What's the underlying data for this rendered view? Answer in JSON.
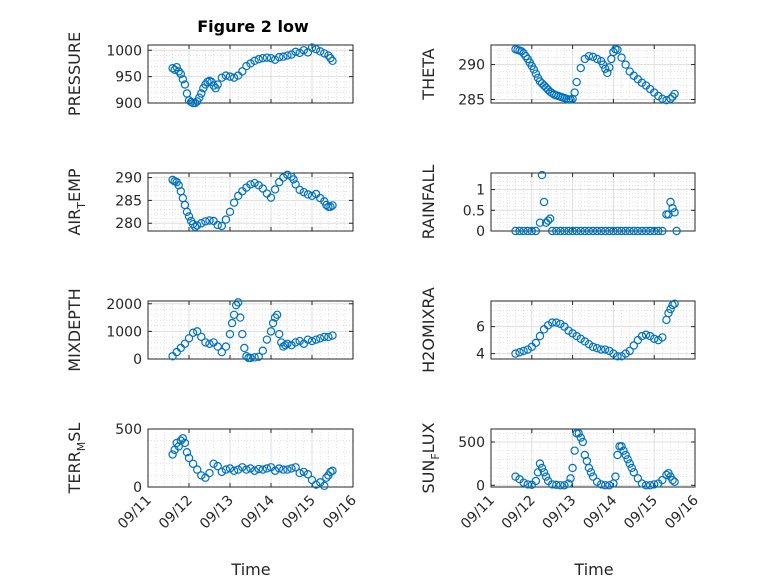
{
  "figure_title": "Figure 2 low",
  "colors": {
    "marker": "#0072bd",
    "axis": "#262626"
  },
  "chart_data": [
    {
      "type": "scatter",
      "ylabel": "PRESSURE",
      "title": "Figure 2 low",
      "xlim": [
        0,
        5
      ],
      "ylim": [
        900,
        1010
      ],
      "yticks": [
        900,
        950,
        1000
      ],
      "ytick_labels": [
        "900",
        "950",
        "1000"
      ],
      "x": [
        0.6,
        0.65,
        0.7,
        0.75,
        0.8,
        0.85,
        0.9,
        0.95,
        1.0,
        1.05,
        1.1,
        1.15,
        1.2,
        1.25,
        1.3,
        1.35,
        1.4,
        1.45,
        1.5,
        1.55,
        1.6,
        1.65,
        1.7,
        1.8,
        1.9,
        2.0,
        2.1,
        2.2,
        2.3,
        2.4,
        2.5,
        2.6,
        2.7,
        2.8,
        2.9,
        3.0,
        3.1,
        3.2,
        3.3,
        3.4,
        3.5,
        3.6,
        3.7,
        3.8,
        3.9,
        4.0,
        4.1,
        4.2,
        4.3,
        4.4,
        4.45,
        4.5
      ],
      "y": [
        966,
        963,
        968,
        960,
        955,
        945,
        935,
        918,
        905,
        902,
        900,
        900,
        903,
        910,
        918,
        928,
        935,
        940,
        942,
        940,
        933,
        928,
        935,
        948,
        952,
        950,
        948,
        952,
        960,
        970,
        975,
        980,
        983,
        985,
        986,
        985,
        982,
        987,
        988,
        990,
        992,
        997,
        995,
        1000,
        996,
        1005,
        1002,
        998,
        994,
        990,
        985,
        980
      ]
    },
    {
      "type": "scatter",
      "ylabel": "THETA",
      "xlim": [
        0,
        5
      ],
      "ylim": [
        284.5,
        292.8
      ],
      "yticks": [
        285,
        290
      ],
      "ytick_labels": [
        "285",
        "290"
      ],
      "x": [
        0.6,
        0.65,
        0.7,
        0.75,
        0.8,
        0.85,
        0.9,
        0.95,
        1.0,
        1.05,
        1.1,
        1.15,
        1.2,
        1.25,
        1.3,
        1.35,
        1.4,
        1.45,
        1.5,
        1.55,
        1.6,
        1.65,
        1.7,
        1.75,
        1.8,
        1.85,
        1.9,
        1.95,
        2.0,
        2.05,
        2.1,
        2.2,
        2.3,
        2.4,
        2.5,
        2.6,
        2.7,
        2.75,
        2.8,
        2.85,
        2.9,
        2.95,
        3.0,
        3.05,
        3.1,
        3.2,
        3.3,
        3.4,
        3.5,
        3.6,
        3.7,
        3.8,
        3.9,
        4.0,
        4.1,
        4.2,
        4.3,
        4.4,
        4.45,
        4.5
      ],
      "y": [
        292.2,
        292.1,
        292.0,
        291.9,
        291.6,
        291.2,
        290.8,
        290.3,
        289.8,
        289.3,
        288.7,
        288.1,
        287.6,
        287.3,
        287.0,
        286.7,
        286.4,
        286.1,
        285.9,
        285.7,
        285.6,
        285.5,
        285.4,
        285.3,
        285.2,
        285.1,
        285.0,
        285.0,
        285.1,
        286.0,
        287.5,
        289.5,
        290.8,
        291.2,
        291.1,
        290.8,
        290.5,
        290.0,
        289.4,
        288.8,
        289.6,
        290.8,
        291.8,
        292.2,
        292.1,
        291.0,
        290.0,
        289.0,
        288.4,
        287.9,
        287.4,
        287.0,
        286.5,
        286.0,
        285.5,
        285.1,
        284.9,
        285.1,
        285.4,
        285.8
      ]
    },
    {
      "type": "scatter",
      "ylabel": "AIR_TEMP",
      "xlim": [
        0,
        5
      ],
      "ylim": [
        278.3,
        291
      ],
      "yticks": [
        280,
        285,
        290
      ],
      "ytick_labels": [
        "280",
        "285",
        "290"
      ],
      "x": [
        0.6,
        0.65,
        0.7,
        0.75,
        0.8,
        0.85,
        0.9,
        0.95,
        1.0,
        1.05,
        1.1,
        1.15,
        1.2,
        1.3,
        1.4,
        1.5,
        1.6,
        1.7,
        1.8,
        1.9,
        2.0,
        2.1,
        2.2,
        2.3,
        2.4,
        2.5,
        2.6,
        2.7,
        2.8,
        2.9,
        3.0,
        3.1,
        3.2,
        3.3,
        3.4,
        3.5,
        3.55,
        3.6,
        3.7,
        3.8,
        3.9,
        4.0,
        4.1,
        4.2,
        4.3,
        4.35,
        4.4,
        4.45,
        4.5
      ],
      "y": [
        289.5,
        289.2,
        289.0,
        288.3,
        287.0,
        285.5,
        284.0,
        282.5,
        281.5,
        280.5,
        279.8,
        279.2,
        279.5,
        280.0,
        280.4,
        280.6,
        280.5,
        279.6,
        279.4,
        280.8,
        282.5,
        284.5,
        286.0,
        287.0,
        287.8,
        288.5,
        288.8,
        288.3,
        287.6,
        286.5,
        285.6,
        287.4,
        289.0,
        290.0,
        290.6,
        290.2,
        289.6,
        288.5,
        287.3,
        286.8,
        286.3,
        286.0,
        286.4,
        285.5,
        284.8,
        284.0,
        283.6,
        283.6,
        283.9
      ]
    },
    {
      "type": "scatter",
      "ylabel": "RAINFALL",
      "xlim": [
        0,
        5
      ],
      "ylim": [
        0,
        1.4
      ],
      "yticks": [
        0,
        0.5,
        1
      ],
      "ytick_labels": [
        "0",
        "0.5",
        "1"
      ],
      "x": [
        0.6,
        0.7,
        0.8,
        0.9,
        1.0,
        1.1,
        1.2,
        1.25,
        1.3,
        1.35,
        1.4,
        1.45,
        1.5,
        1.6,
        1.7,
        1.8,
        1.9,
        2.0,
        2.1,
        2.2,
        2.3,
        2.4,
        2.5,
        2.6,
        2.7,
        2.8,
        2.9,
        3.0,
        3.1,
        3.2,
        3.3,
        3.4,
        3.5,
        3.6,
        3.7,
        3.8,
        3.9,
        4.0,
        4.1,
        4.2,
        4.3,
        4.35,
        4.4,
        4.45,
        4.5,
        4.55
      ],
      "y": [
        0,
        0,
        0,
        0,
        0,
        0,
        0.2,
        1.35,
        0.7,
        0.2,
        0.25,
        0.3,
        0,
        0,
        0,
        0,
        0,
        0,
        0,
        0,
        0,
        0,
        0,
        0,
        0,
        0,
        0,
        0,
        0,
        0,
        0,
        0,
        0,
        0,
        0,
        0,
        0,
        0,
        0,
        0,
        0.4,
        0.4,
        0.7,
        0.55,
        0.45,
        0
      ]
    },
    {
      "type": "scatter",
      "ylabel": "MIXDEPTH",
      "xlim": [
        0,
        5
      ],
      "ylim": [
        0,
        2100
      ],
      "yticks": [
        0,
        1000,
        2000
      ],
      "ytick_labels": [
        "0",
        "1000",
        "2000"
      ],
      "x": [
        0.6,
        0.7,
        0.8,
        0.9,
        1.0,
        1.1,
        1.2,
        1.3,
        1.4,
        1.5,
        1.6,
        1.7,
        1.8,
        1.9,
        2.0,
        2.05,
        2.1,
        2.15,
        2.2,
        2.25,
        2.3,
        2.35,
        2.4,
        2.45,
        2.5,
        2.6,
        2.7,
        2.8,
        2.9,
        3.0,
        3.05,
        3.1,
        3.15,
        3.2,
        3.25,
        3.3,
        3.35,
        3.4,
        3.5,
        3.6,
        3.7,
        3.8,
        3.9,
        4.0,
        4.1,
        4.2,
        4.3,
        4.4,
        4.5
      ],
      "y": [
        100,
        250,
        400,
        550,
        750,
        950,
        1000,
        800,
        600,
        550,
        600,
        450,
        250,
        450,
        900,
        1300,
        1600,
        1950,
        2050,
        1500,
        900,
        400,
        100,
        40,
        40,
        60,
        80,
        300,
        700,
        1000,
        1300,
        1500,
        1600,
        900,
        600,
        450,
        500,
        550,
        500,
        600,
        650,
        550,
        700,
        650,
        700,
        750,
        800,
        800,
        850
      ]
    },
    {
      "type": "scatter",
      "ylabel": "H2OMIXRA",
      "xlim": [
        0,
        5
      ],
      "ylim": [
        3.6,
        7.9
      ],
      "yticks": [
        4,
        6
      ],
      "ytick_labels": [
        "4",
        "6"
      ],
      "x": [
        0.6,
        0.7,
        0.8,
        0.9,
        1.0,
        1.1,
        1.2,
        1.3,
        1.4,
        1.5,
        1.6,
        1.7,
        1.8,
        1.9,
        2.0,
        2.1,
        2.2,
        2.3,
        2.4,
        2.5,
        2.6,
        2.7,
        2.8,
        2.9,
        3.0,
        3.1,
        3.2,
        3.3,
        3.4,
        3.5,
        3.6,
        3.7,
        3.8,
        3.9,
        4.0,
        4.1,
        4.2,
        4.3,
        4.35,
        4.4,
        4.45,
        4.5
      ],
      "y": [
        4.0,
        4.1,
        4.2,
        4.3,
        4.5,
        4.8,
        5.3,
        5.8,
        6.1,
        6.3,
        6.3,
        6.2,
        6.0,
        5.7,
        5.5,
        5.3,
        5.1,
        4.9,
        4.7,
        4.5,
        4.4,
        4.3,
        4.3,
        4.2,
        4.0,
        3.8,
        3.8,
        4.0,
        4.2,
        4.6,
        5.0,
        5.3,
        5.4,
        5.3,
        5.1,
        5.0,
        5.2,
        6.5,
        7.0,
        7.3,
        7.6,
        7.7
      ]
    },
    {
      "type": "scatter",
      "ylabel": "TERR_MSL",
      "xlim": [
        0,
        5
      ],
      "ylim": [
        0,
        500
      ],
      "yticks": [
        0,
        500
      ],
      "ytick_labels": [
        "0",
        "500"
      ],
      "x": [
        0.6,
        0.65,
        0.7,
        0.75,
        0.8,
        0.85,
        0.9,
        0.95,
        1.0,
        1.1,
        1.2,
        1.3,
        1.4,
        1.5,
        1.6,
        1.7,
        1.8,
        1.9,
        2.0,
        2.1,
        2.2,
        2.3,
        2.4,
        2.5,
        2.6,
        2.7,
        2.8,
        2.9,
        3.0,
        3.1,
        3.2,
        3.3,
        3.4,
        3.5,
        3.6,
        3.7,
        3.8,
        3.9,
        4.0,
        4.1,
        4.2,
        4.3,
        4.35,
        4.4,
        4.45,
        4.5
      ],
      "y": [
        280,
        320,
        380,
        350,
        400,
        420,
        380,
        300,
        250,
        200,
        150,
        100,
        80,
        120,
        200,
        180,
        130,
        150,
        160,
        140,
        150,
        170,
        150,
        160,
        140,
        155,
        150,
        160,
        170,
        140,
        160,
        150,
        150,
        160,
        170,
        120,
        130,
        110,
        60,
        20,
        40,
        10,
        80,
        100,
        130,
        140
      ]
    },
    {
      "type": "scatter",
      "ylabel": "SUN_FLUX",
      "xlim": [
        0,
        5
      ],
      "ylim": [
        -20,
        650
      ],
      "yticks": [
        0,
        500
      ],
      "ytick_labels": [
        "0",
        "500"
      ],
      "x": [
        0.6,
        0.7,
        0.8,
        0.9,
        1.0,
        1.1,
        1.15,
        1.2,
        1.25,
        1.3,
        1.35,
        1.4,
        1.5,
        1.6,
        1.7,
        1.8,
        1.9,
        1.95,
        2.0,
        2.05,
        2.1,
        2.15,
        2.2,
        2.25,
        2.3,
        2.35,
        2.4,
        2.45,
        2.5,
        2.6,
        2.7,
        2.8,
        2.9,
        3.0,
        3.05,
        3.1,
        3.15,
        3.2,
        3.25,
        3.3,
        3.35,
        3.4,
        3.45,
        3.5,
        3.6,
        3.7,
        3.8,
        3.9,
        4.0,
        4.1,
        4.2,
        4.3,
        4.35,
        4.4,
        4.45,
        4.5
      ],
      "y": [
        100,
        70,
        30,
        10,
        5,
        50,
        150,
        250,
        200,
        150,
        100,
        50,
        10,
        5,
        0,
        0,
        20,
        80,
        200,
        400,
        600,
        600,
        550,
        500,
        350,
        280,
        200,
        150,
        100,
        40,
        10,
        0,
        0,
        20,
        100,
        350,
        450,
        450,
        400,
        350,
        300,
        250,
        200,
        150,
        80,
        20,
        0,
        0,
        10,
        20,
        60,
        120,
        140,
        100,
        60,
        40
      ]
    }
  ],
  "xtick_labels": [
    "09/11",
    "09/12",
    "09/13",
    "09/14",
    "09/15",
    "09/16"
  ],
  "xlabel": "Time"
}
